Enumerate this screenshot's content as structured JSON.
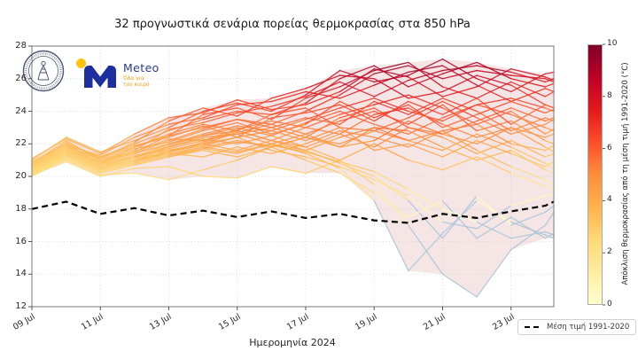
{
  "branding": {
    "meteo": {
      "name": "Meteo",
      "tagline1": "Όλα για",
      "tagline2": "τον καιρό"
    }
  },
  "chart_data": {
    "type": "line",
    "title": "32 προγνωστικά σενάρια πορείας θερμοκρασίας στα 850 hPa",
    "xlabel": "Ημερομηνία 2024",
    "ylim": [
      12,
      28
    ],
    "y_ticks": [
      12,
      14,
      16,
      18,
      20,
      22,
      24,
      26,
      28
    ],
    "x_tick_labels": [
      "09 Jul",
      "11 Jul",
      "13 Jul",
      "15 Jul",
      "17 Jul",
      "19 Jul",
      "21 Jul",
      "23 Jul"
    ],
    "x_tick_days": [
      0,
      2,
      4,
      6,
      8,
      10,
      12,
      14
    ],
    "x_domain_days": [
      0,
      15.25
    ],
    "grid": true,
    "grid_color": "#d2d2d2",
    "spine_color": "#7a7a7a",
    "envelope_fill": "#cd7b7b",
    "envelope_opacity": 0.2,
    "below_mean_color": "#a9c6d8",
    "colorbar": {
      "label": "Απόκλιση θερμοκρασίας από τη μέση τιμή 1991-2020 (°C)",
      "min": 0,
      "max": 10,
      "ticks": [
        0,
        2,
        4,
        6,
        8,
        10
      ],
      "colors": [
        "#ffffcc",
        "#ffeda0",
        "#fed976",
        "#feb24c",
        "#fd8d3c",
        "#fc4e2a",
        "#e31a1c",
        "#bd0026",
        "#800026"
      ]
    },
    "mean_line": {
      "label": "Μέση τιμή 1991-2020",
      "color": "#000000",
      "values": [
        18.0,
        18.45,
        17.7,
        18.05,
        17.6,
        17.9,
        17.5,
        17.85,
        17.45,
        17.7,
        17.3,
        17.15,
        17.7,
        17.45,
        17.85,
        18.2,
        18.45
      ]
    },
    "x_days": [
      0,
      1,
      2,
      3,
      4,
      5,
      6,
      7,
      8,
      9,
      10,
      11,
      12,
      13,
      14,
      15,
      15.25
    ],
    "ensemble": {
      "count": 32,
      "series": [
        [
          20.8,
          22.2,
          21.0,
          21.5,
          22.5,
          23.0,
          23.5,
          23.2,
          24.0,
          25.0,
          26.3,
          26.8,
          26.0,
          26.5,
          26.2,
          26.0,
          25.8
        ],
        [
          20.5,
          21.8,
          21.2,
          22.0,
          22.8,
          23.5,
          24.0,
          23.8,
          24.5,
          26.0,
          26.8,
          25.5,
          26.3,
          27.0,
          26.0,
          25.5,
          25.7
        ],
        [
          21.0,
          22.4,
          21.5,
          22.2,
          23.0,
          24.0,
          24.5,
          24.0,
          25.0,
          26.5,
          25.8,
          26.2,
          27.2,
          26.0,
          25.2,
          26.3,
          26.4
        ],
        [
          20.6,
          22.0,
          20.8,
          21.8,
          22.5,
          23.8,
          24.2,
          23.5,
          24.8,
          25.5,
          26.5,
          27.0,
          25.5,
          24.8,
          25.8,
          24.9,
          25.2
        ],
        [
          20.9,
          21.9,
          21.3,
          22.4,
          23.2,
          23.6,
          24.4,
          24.6,
          25.2,
          24.8,
          25.6,
          26.4,
          26.8,
          25.6,
          24.6,
          25.4,
          25.2
        ],
        [
          20.4,
          21.6,
          20.9,
          21.6,
          22.9,
          23.3,
          23.9,
          24.3,
          24.9,
          25.8,
          24.9,
          25.9,
          26.5,
          26.8,
          26.4,
          25.8,
          26.0
        ],
        [
          20.7,
          22.1,
          21.1,
          22.1,
          23.4,
          24.2,
          23.7,
          24.8,
          25.4,
          26.2,
          26.0,
          24.8,
          25.2,
          26.2,
          25.6,
          24.4,
          24.2
        ],
        [
          21.1,
          22.3,
          21.4,
          22.6,
          23.6,
          23.9,
          24.7,
          24.1,
          24.4,
          25.2,
          26.6,
          26.1,
          24.9,
          25.5,
          26.6,
          26.1,
          25.9
        ],
        [
          20.3,
          21.5,
          20.6,
          21.2,
          22.0,
          22.6,
          23.1,
          22.8,
          23.5,
          24.2,
          24.8,
          24.0,
          23.4,
          24.4,
          23.8,
          23.0,
          22.8
        ],
        [
          20.6,
          21.7,
          20.9,
          21.5,
          22.3,
          22.2,
          22.9,
          23.4,
          23.0,
          23.8,
          24.4,
          25.0,
          24.2,
          23.2,
          24.0,
          22.6,
          22.9
        ],
        [
          20.2,
          21.4,
          20.5,
          21.0,
          21.8,
          22.4,
          22.6,
          23.0,
          23.6,
          23.2,
          24.6,
          23.8,
          24.8,
          24.0,
          22.8,
          23.6,
          23.4
        ],
        [
          20.8,
          21.9,
          21.0,
          21.7,
          22.1,
          22.8,
          23.3,
          22.6,
          23.2,
          24.6,
          23.6,
          24.4,
          23.0,
          23.8,
          24.6,
          23.9,
          24.1
        ],
        [
          20.4,
          21.6,
          20.7,
          21.3,
          21.6,
          22.0,
          22.7,
          23.2,
          22.6,
          23.4,
          24.0,
          23.2,
          24.4,
          22.8,
          23.4,
          22.2,
          22.0
        ],
        [
          20.9,
          22.0,
          21.2,
          21.9,
          22.4,
          23.1,
          22.4,
          23.6,
          23.9,
          24.4,
          23.4,
          24.6,
          23.8,
          24.8,
          23.2,
          24.4,
          24.2
        ],
        [
          20.5,
          21.7,
          20.8,
          21.4,
          22.2,
          22.9,
          23.5,
          23.0,
          22.4,
          23.6,
          24.2,
          23.0,
          22.6,
          23.4,
          24.2,
          23.4,
          23.6
        ],
        [
          20.1,
          21.3,
          20.4,
          20.9,
          21.5,
          22.1,
          22.8,
          22.2,
          23.0,
          22.6,
          23.8,
          24.2,
          23.2,
          22.4,
          23.0,
          21.8,
          21.5
        ],
        [
          20.7,
          21.8,
          21.1,
          21.8,
          22.6,
          23.2,
          22.8,
          23.8,
          24.2,
          23.0,
          22.8,
          23.6,
          24.6,
          23.6,
          22.6,
          23.2,
          23.5
        ],
        [
          20.3,
          21.5,
          20.6,
          21.1,
          21.9,
          22.5,
          23.0,
          22.5,
          23.3,
          24.0,
          23.2,
          22.6,
          23.6,
          24.4,
          24.8,
          24.2,
          24.0
        ],
        [
          20.2,
          21.2,
          20.3,
          20.8,
          21.3,
          21.8,
          22.2,
          21.8,
          22.4,
          22.0,
          22.8,
          22.2,
          21.6,
          22.6,
          21.8,
          20.8,
          20.5
        ],
        [
          20.4,
          21.5,
          20.6,
          21.0,
          21.6,
          22.0,
          21.6,
          22.2,
          21.8,
          22.6,
          21.8,
          23.0,
          22.4,
          21.4,
          22.2,
          21.2,
          21.4
        ],
        [
          20.2,
          21.0,
          20.1,
          20.2,
          19.8,
          20.4,
          21.0,
          21.8,
          22.4,
          21.8,
          23.0,
          22.2,
          22.8,
          21.6,
          20.6,
          19.8,
          19.5
        ],
        [
          20.3,
          21.3,
          20.4,
          20.9,
          21.4,
          21.2,
          21.8,
          21.4,
          22.0,
          22.8,
          22.4,
          21.8,
          22.8,
          23.2,
          22.0,
          21.6,
          21.9
        ],
        [
          20.6,
          21.6,
          20.8,
          21.2,
          21.7,
          22.2,
          22.6,
          22.0,
          21.6,
          22.4,
          23.0,
          22.8,
          21.8,
          21.0,
          21.6,
          20.4,
          20.2
        ],
        [
          20.3,
          21.1,
          20.2,
          20.7,
          21.2,
          21.7,
          21.4,
          22.0,
          22.6,
          21.8,
          22.2,
          23.4,
          22.6,
          22.0,
          23.0,
          22.4,
          22.6
        ],
        [
          20.3,
          21.4,
          20.5,
          21.0,
          21.5,
          21.9,
          22.4,
          22.8,
          22.2,
          23.0,
          21.6,
          22.0,
          21.2,
          22.2,
          21.4,
          20.6,
          20.9
        ],
        [
          20.1,
          20.9,
          20.0,
          20.5,
          20.6,
          20.0,
          19.9,
          20.6,
          20.2,
          21.0,
          22.0,
          21.0,
          20.4,
          21.2,
          20.2,
          19.4,
          19.2
        ],
        [
          20.5,
          21.6,
          20.7,
          21.2,
          21.8,
          22.3,
          22.0,
          22.5,
          21.8,
          21.0,
          19.5,
          17.0,
          14.0,
          12.6,
          15.5,
          17.0,
          17.8
        ],
        [
          20.2,
          21.3,
          20.4,
          20.9,
          21.4,
          21.8,
          21.5,
          22.0,
          21.4,
          20.5,
          18.5,
          14.2,
          16.5,
          18.5,
          17.2,
          16.4,
          16.2
        ],
        [
          20.7,
          21.8,
          20.9,
          21.4,
          22.0,
          22.5,
          22.8,
          22.2,
          21.6,
          20.8,
          20.0,
          18.5,
          16.2,
          18.8,
          17.0,
          17.8,
          18.2
        ],
        [
          20.0,
          21.1,
          20.2,
          20.7,
          21.2,
          21.6,
          21.2,
          21.8,
          21.0,
          20.2,
          19.0,
          17.5,
          18.5,
          16.2,
          17.5,
          16.2,
          16.5
        ],
        [
          20.4,
          21.4,
          20.5,
          21.0,
          21.5,
          22.0,
          22.4,
          21.6,
          21.2,
          20.6,
          19.8,
          18.8,
          17.2,
          16.8,
          18.2,
          18.8,
          19.0
        ],
        [
          20.1,
          21.2,
          20.3,
          20.8,
          21.3,
          21.7,
          22.1,
          21.9,
          21.5,
          20.9,
          20.3,
          19.2,
          18.0,
          17.2,
          16.2,
          16.6,
          16.4
        ]
      ]
    }
  }
}
